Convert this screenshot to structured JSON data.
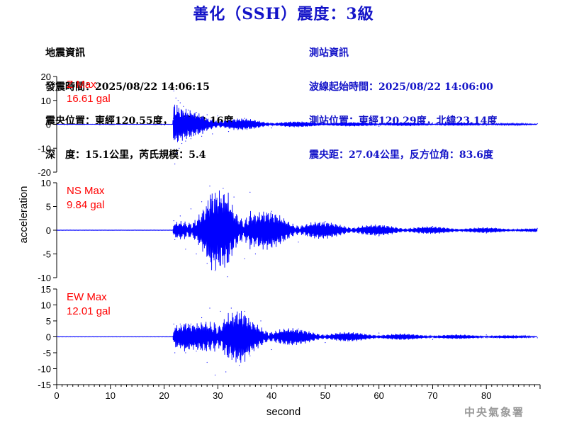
{
  "header": {
    "title": "善化（SSH）震度：3級"
  },
  "quake_info": {
    "heading": "地震資訊",
    "origin_time": "發震時間：2025/08/22 14:06:15",
    "epicenter": "震央位置：東經120.55度，北緯23.16度",
    "depth_magnitude": "深　度：15.1公里，芮氏規模：5.4"
  },
  "station_info": {
    "heading": "測站資訊",
    "wave_start": "波線起始時間：2025/08/22 14:06:00",
    "station_location": "測站位置：東經120.29度，北緯23.14度",
    "distance_azimuth": "震央距：27.04公里，反方位角：83.6度"
  },
  "footer": {
    "agency": "中央氣象署"
  },
  "chart_data": {
    "type": "line",
    "xlabel": "second",
    "ylabel": "acceleration",
    "xlim": [
      0,
      90
    ],
    "x_ticks": [
      "0",
      "10",
      "20",
      "30",
      "40",
      "50",
      "60",
      "70",
      "80"
    ],
    "line_color": "#0000ff",
    "label_color": "#ff0000",
    "panels": [
      {
        "component": "Z",
        "max_label": "Z Max",
        "max_value": "16.61 gal",
        "ylim": [
          -20,
          20
        ],
        "y_ticks": [
          "20",
          "10",
          "0",
          "-10",
          "-20"
        ],
        "series": [
          {
            "x": 0,
            "y": 0
          },
          {
            "x": 21.6,
            "y": 0
          },
          {
            "x": 21.8,
            "y": 14
          },
          {
            "x": 22.0,
            "y": -16.6
          },
          {
            "x": 22.2,
            "y": 11
          },
          {
            "x": 22.4,
            "y": -12
          },
          {
            "x": 22.6,
            "y": 10
          },
          {
            "x": 22.8,
            "y": -10
          },
          {
            "x": 23.0,
            "y": 9
          },
          {
            "x": 23.3,
            "y": -8
          },
          {
            "x": 23.6,
            "y": 7.5
          },
          {
            "x": 24.0,
            "y": -7
          },
          {
            "x": 24.5,
            "y": 6
          },
          {
            "x": 25.0,
            "y": -6
          },
          {
            "x": 26.0,
            "y": 5
          },
          {
            "x": 27.0,
            "y": -5
          },
          {
            "x": 28.0,
            "y": 4
          },
          {
            "x": 29.0,
            "y": -4
          },
          {
            "x": 30.0,
            "y": 3.5
          },
          {
            "x": 32.0,
            "y": -3
          },
          {
            "x": 35.0,
            "y": 2.5
          },
          {
            "x": 40.0,
            "y": -1.5
          },
          {
            "x": 50.0,
            "y": 1
          },
          {
            "x": 60.0,
            "y": -0.8
          },
          {
            "x": 70.0,
            "y": 0.6
          },
          {
            "x": 80.0,
            "y": -0.5
          },
          {
            "x": 89.5,
            "y": 0.3
          }
        ]
      },
      {
        "component": "NS",
        "max_label": "NS Max",
        "max_value": "9.84 gal",
        "ylim": [
          -10,
          10
        ],
        "y_ticks": [
          "10",
          "5",
          "0",
          "-5",
          "-10"
        ],
        "series": [
          {
            "x": 0,
            "y": 0
          },
          {
            "x": 21.6,
            "y": 0
          },
          {
            "x": 21.8,
            "y": 2
          },
          {
            "x": 22.0,
            "y": -2
          },
          {
            "x": 23.0,
            "y": 3
          },
          {
            "x": 24.0,
            "y": -4
          },
          {
            "x": 25.0,
            "y": 4.5
          },
          {
            "x": 26.0,
            "y": -5
          },
          {
            "x": 27.0,
            "y": 6
          },
          {
            "x": 28.0,
            "y": -7
          },
          {
            "x": 28.5,
            "y": 9.3
          },
          {
            "x": 29.5,
            "y": -8.5
          },
          {
            "x": 31.0,
            "y": 8.8
          },
          {
            "x": 31.8,
            "y": -9.8
          },
          {
            "x": 33.0,
            "y": 7
          },
          {
            "x": 35.0,
            "y": -6
          },
          {
            "x": 36.0,
            "y": 8
          },
          {
            "x": 37.0,
            "y": -5
          },
          {
            "x": 40.0,
            "y": 4
          },
          {
            "x": 45.0,
            "y": -2.5
          },
          {
            "x": 50.0,
            "y": 1.8
          },
          {
            "x": 60.0,
            "y": -1.2
          },
          {
            "x": 70.0,
            "y": 0.8
          },
          {
            "x": 80.0,
            "y": -0.6
          },
          {
            "x": 89.5,
            "y": 0.4
          }
        ]
      },
      {
        "component": "EW",
        "max_label": "EW Max",
        "max_value": "12.01 gal",
        "ylim": [
          -15,
          15
        ],
        "y_ticks": [
          "15",
          "10",
          "5",
          "0",
          "-5",
          "-10",
          "-15"
        ],
        "series": [
          {
            "x": 0,
            "y": 0
          },
          {
            "x": 21.6,
            "y": 0
          },
          {
            "x": 21.8,
            "y": 4
          },
          {
            "x": 22.0,
            "y": -5
          },
          {
            "x": 23.0,
            "y": 4
          },
          {
            "x": 24.0,
            "y": -5
          },
          {
            "x": 25.0,
            "y": 4
          },
          {
            "x": 26.0,
            "y": -4.5
          },
          {
            "x": 27.0,
            "y": 6
          },
          {
            "x": 28.0,
            "y": -8
          },
          {
            "x": 28.5,
            "y": 9
          },
          {
            "x": 29.5,
            "y": -12
          },
          {
            "x": 30.5,
            "y": 8
          },
          {
            "x": 31.5,
            "y": -11
          },
          {
            "x": 32.5,
            "y": 9
          },
          {
            "x": 34.0,
            "y": -9
          },
          {
            "x": 35.0,
            "y": 8
          },
          {
            "x": 36.0,
            "y": -6
          },
          {
            "x": 38.0,
            "y": 5
          },
          {
            "x": 40.0,
            "y": -4
          },
          {
            "x": 45.0,
            "y": 2.5
          },
          {
            "x": 50.0,
            "y": -1.8
          },
          {
            "x": 60.0,
            "y": 1.2
          },
          {
            "x": 70.0,
            "y": -0.8
          },
          {
            "x": 80.0,
            "y": 0.6
          },
          {
            "x": 89.5,
            "y": -0.3
          }
        ]
      }
    ]
  }
}
